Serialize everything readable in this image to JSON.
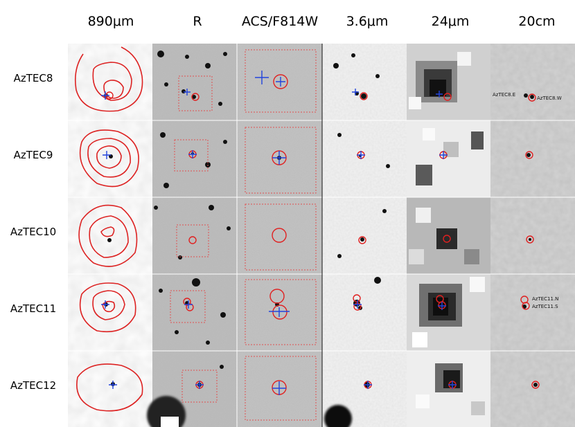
{
  "figure": {
    "columns": [
      "890μm",
      "R",
      "ACS/F814W",
      "3.6μm",
      "24μm",
      "20cm"
    ],
    "rows": [
      {
        "source": "AzTEC8",
        "annotations_20cm": [
          "AzTEC8.E",
          "AzTEC8.W"
        ]
      },
      {
        "source": "AzTEC9",
        "annotations_20cm": []
      },
      {
        "source": "AzTEC10",
        "annotations_20cm": []
      },
      {
        "source": "AzTEC11",
        "annotations_20cm": [
          "AzTEC11.N",
          "AzTEC11.S"
        ]
      },
      {
        "source": "AzTEC12",
        "annotations_20cm": []
      }
    ]
  },
  "colors": {
    "contour": "#dd2222",
    "marker_circle": "#e02020",
    "marker_cross": "#2244dd",
    "box": "#e05050"
  }
}
